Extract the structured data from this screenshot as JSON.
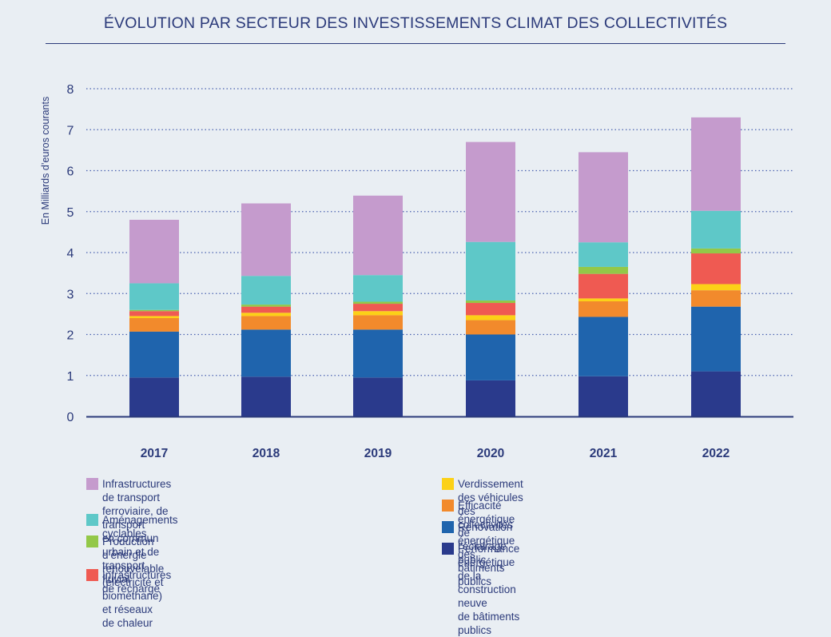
{
  "title": "ÉVOLUTION PAR SECTEUR DES INVESTISSEMENTS CLIMAT DES COLLECTIVITÉS",
  "chart_data": {
    "type": "bar",
    "stacked": true,
    "ylabel": "En Milliards d’euros courants",
    "xlabel": "",
    "ylim": [
      0,
      8
    ],
    "yticks": [
      "0",
      "1",
      "2",
      "3",
      "4",
      "5",
      "6",
      "7",
      "8"
    ],
    "grid": true,
    "legend_position": "bottom",
    "categories": [
      "2017",
      "2018",
      "2019",
      "2020",
      "2021",
      "2022"
    ],
    "series": [
      {
        "name": "Performance énergétique de la construction neuve\nde bâtiments publics",
        "color": "#2a3a8c",
        "values": [
          0.95,
          0.97,
          0.95,
          0.88,
          0.98,
          1.1
        ]
      },
      {
        "name": "Rénovation énergétique des bâtiments publics",
        "color": "#1f64ad",
        "values": [
          1.12,
          1.15,
          1.17,
          1.12,
          1.45,
          1.58
        ]
      },
      {
        "name": "Efficacité énergétique de l’éclairage public",
        "color": "#f28a2c",
        "values": [
          0.33,
          0.33,
          0.35,
          0.35,
          0.38,
          0.4
        ]
      },
      {
        "name": "Verdissement des véhicules des collectivités",
        "color": "#fcd117",
        "values": [
          0.05,
          0.08,
          0.1,
          0.12,
          0.07,
          0.15
        ]
      },
      {
        "name": "Infrastructures de recharge",
        "color": "#ef5a52",
        "values": [
          0.12,
          0.15,
          0.18,
          0.3,
          0.6,
          0.75
        ]
      },
      {
        "name": "Production d’énergie renouvelable (électricité et biométhane)\net réseaux de chaleur",
        "color": "#93c848",
        "values": [
          0.03,
          0.05,
          0.05,
          0.06,
          0.17,
          0.12
        ]
      },
      {
        "name": "Aménagements cyclables",
        "color": "#5ec8c8",
        "values": [
          0.65,
          0.7,
          0.65,
          1.43,
          0.6,
          0.92
        ]
      },
      {
        "name": "Infrastructures de transport ferroviaire, de transport\nen commun urbain et de transport fluvial",
        "color": "#c59bcd",
        "values": [
          1.55,
          1.77,
          1.94,
          2.44,
          2.2,
          2.28
        ]
      }
    ]
  },
  "legend": {
    "left": [
      7,
      6,
      5,
      4
    ],
    "right": [
      3,
      2,
      1,
      0
    ]
  }
}
